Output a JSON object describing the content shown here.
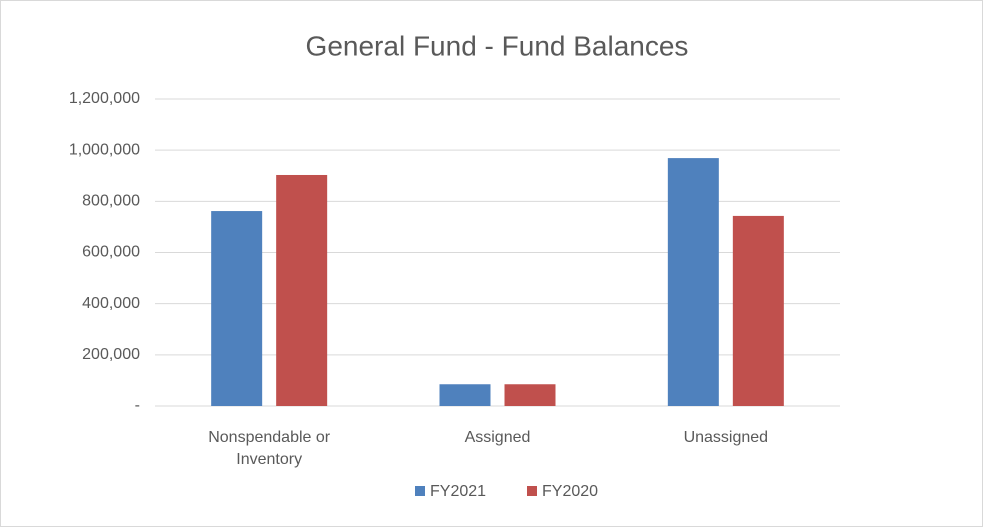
{
  "chart_data": {
    "type": "bar",
    "title": "General Fund - Fund Balances",
    "categories": [
      "Nonspendable or Inventory",
      "Assigned",
      "Unassigned"
    ],
    "series": [
      {
        "name": "FY2021",
        "color": "#4f81bd",
        "values": [
          762000,
          85000,
          969000
        ]
      },
      {
        "name": "FY2020",
        "color": "#c0504d",
        "values": [
          903000,
          85000,
          743000
        ]
      }
    ],
    "ylim": [
      0,
      1200000
    ],
    "yticks": [
      {
        "value": 0,
        "label": "-"
      },
      {
        "value": 200000,
        "label": "200,000"
      },
      {
        "value": 400000,
        "label": "400,000"
      },
      {
        "value": 600000,
        "label": "600,000"
      },
      {
        "value": 800000,
        "label": "800,000"
      },
      {
        "value": 1000000,
        "label": "1,000,000"
      },
      {
        "value": 1200000,
        "label": "1,200,000"
      }
    ],
    "grid": true,
    "legend": "bottom"
  }
}
